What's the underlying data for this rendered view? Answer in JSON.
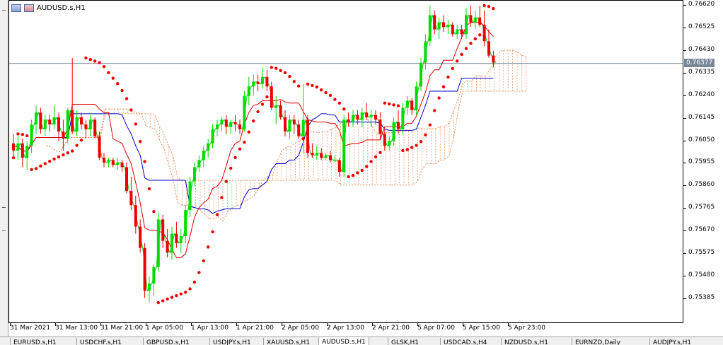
{
  "window": {
    "title": "AUDUSD.s,H1"
  },
  "colors": {
    "bull": "#00dd00",
    "bear": "#ee0000",
    "tenkan": "#dd0000",
    "kijun": "#0000cc",
    "chikou": "#22cc22",
    "cloud": "#e8905a",
    "psar": "#ee0000",
    "price_line": "#778899"
  },
  "price_axis": {
    "labels": [
      "0.76620",
      "0.76525",
      "0.76430",
      "0.76335",
      "0.76240",
      "0.76145",
      "0.76050",
      "0.75955",
      "0.75860",
      "0.75765",
      "0.75670",
      "0.75575",
      "0.75480",
      "0.75385"
    ],
    "current_price": "0.76377"
  },
  "time_axis": {
    "labels": [
      "31 Mar 2021",
      "31 Mar 13:00",
      "31 Mar 21:00",
      "1 Apr 05:00",
      "1 Apr 13:00",
      "1 Apr 21:00",
      "2 Apr 05:00",
      "2 Apr 13:00",
      "2 Apr 21:00",
      "5 Apr 07:00",
      "5 Apr 15:00",
      "5 Apr 23:00"
    ]
  },
  "tabs": [
    "EURUSD.s,H1",
    "USDCHF.s,H1",
    "GBPUSD.s,H1",
    "USDJPY.s,H1",
    "XAUUSD.s,H1",
    "AUDUSD.s,H1",
    "GLSK,H1",
    "USDCAD.s,H4",
    "NZDUSD.s,H1",
    "EURNZD,Daily",
    "AUDJPY.s,H1"
  ],
  "active_tab": "AUDUSD.s,H1",
  "chart_data": {
    "type": "candlestick",
    "title": "AUDUSD.s,H1",
    "ylim": [
      0.7534,
      0.7667
    ],
    "indicators": [
      "Ichimoku Kinko Hyo",
      "Parabolic SAR"
    ],
    "candles": [
      {
        "o": 0.7604,
        "h": 0.7608,
        "l": 0.7598,
        "c": 0.7601
      },
      {
        "o": 0.7601,
        "h": 0.7607,
        "l": 0.7597,
        "c": 0.7604
      },
      {
        "o": 0.7604,
        "h": 0.7606,
        "l": 0.7594,
        "c": 0.7598
      },
      {
        "o": 0.7598,
        "h": 0.7605,
        "l": 0.7593,
        "c": 0.7603
      },
      {
        "o": 0.7603,
        "h": 0.7614,
        "l": 0.76,
        "c": 0.7612
      },
      {
        "o": 0.7612,
        "h": 0.762,
        "l": 0.7608,
        "c": 0.7617
      },
      {
        "o": 0.7617,
        "h": 0.7619,
        "l": 0.7608,
        "c": 0.761
      },
      {
        "o": 0.761,
        "h": 0.7616,
        "l": 0.7607,
        "c": 0.7614
      },
      {
        "o": 0.7614,
        "h": 0.7616,
        "l": 0.7609,
        "c": 0.7612
      },
      {
        "o": 0.7612,
        "h": 0.762,
        "l": 0.761,
        "c": 0.7615
      },
      {
        "o": 0.7615,
        "h": 0.7617,
        "l": 0.7605,
        "c": 0.7609
      },
      {
        "o": 0.7609,
        "h": 0.7614,
        "l": 0.7601,
        "c": 0.7606
      },
      {
        "o": 0.7606,
        "h": 0.7619,
        "l": 0.7604,
        "c": 0.7618
      },
      {
        "o": 0.7618,
        "h": 0.764,
        "l": 0.7608,
        "c": 0.7609
      },
      {
        "o": 0.7609,
        "h": 0.7618,
        "l": 0.7607,
        "c": 0.7615
      },
      {
        "o": 0.7615,
        "h": 0.7617,
        "l": 0.761,
        "c": 0.7612
      },
      {
        "o": 0.7612,
        "h": 0.7614,
        "l": 0.7606,
        "c": 0.761
      },
      {
        "o": 0.761,
        "h": 0.7616,
        "l": 0.7607,
        "c": 0.7614
      },
      {
        "o": 0.7614,
        "h": 0.7615,
        "l": 0.7606,
        "c": 0.7607
      },
      {
        "o": 0.7607,
        "h": 0.7609,
        "l": 0.7597,
        "c": 0.7598
      },
      {
        "o": 0.7598,
        "h": 0.76,
        "l": 0.7594,
        "c": 0.7596
      },
      {
        "o": 0.7596,
        "h": 0.7598,
        "l": 0.7594,
        "c": 0.7597
      },
      {
        "o": 0.7597,
        "h": 0.7598,
        "l": 0.7594,
        "c": 0.7595
      },
      {
        "o": 0.7595,
        "h": 0.7598,
        "l": 0.7593,
        "c": 0.7596
      },
      {
        "o": 0.7596,
        "h": 0.7597,
        "l": 0.7592,
        "c": 0.7594
      },
      {
        "o": 0.7594,
        "h": 0.7596,
        "l": 0.7583,
        "c": 0.7584
      },
      {
        "o": 0.7584,
        "h": 0.759,
        "l": 0.7576,
        "c": 0.7578
      },
      {
        "o": 0.7578,
        "h": 0.7582,
        "l": 0.7566,
        "c": 0.7569
      },
      {
        "o": 0.7569,
        "h": 0.7572,
        "l": 0.7558,
        "c": 0.756
      },
      {
        "o": 0.756,
        "h": 0.7562,
        "l": 0.7539,
        "c": 0.7542
      },
      {
        "o": 0.7542,
        "h": 0.7548,
        "l": 0.7537,
        "c": 0.7545
      },
      {
        "o": 0.7545,
        "h": 0.7553,
        "l": 0.754,
        "c": 0.7552
      },
      {
        "o": 0.7552,
        "h": 0.7575,
        "l": 0.755,
        "c": 0.7572
      },
      {
        "o": 0.7572,
        "h": 0.7574,
        "l": 0.756,
        "c": 0.7563
      },
      {
        "o": 0.7563,
        "h": 0.7568,
        "l": 0.7556,
        "c": 0.7558
      },
      {
        "o": 0.7558,
        "h": 0.7569,
        "l": 0.7555,
        "c": 0.7566
      },
      {
        "o": 0.7566,
        "h": 0.7571,
        "l": 0.756,
        "c": 0.7562
      },
      {
        "o": 0.7562,
        "h": 0.7568,
        "l": 0.7558,
        "c": 0.7565
      },
      {
        "o": 0.7565,
        "h": 0.7578,
        "l": 0.7562,
        "c": 0.7576
      },
      {
        "o": 0.7576,
        "h": 0.759,
        "l": 0.7573,
        "c": 0.7588
      },
      {
        "o": 0.7588,
        "h": 0.7596,
        "l": 0.7586,
        "c": 0.7594
      },
      {
        "o": 0.7594,
        "h": 0.7599,
        "l": 0.7592,
        "c": 0.7597
      },
      {
        "o": 0.7597,
        "h": 0.7603,
        "l": 0.7594,
        "c": 0.7601
      },
      {
        "o": 0.7601,
        "h": 0.7606,
        "l": 0.7598,
        "c": 0.7604
      },
      {
        "o": 0.7604,
        "h": 0.7612,
        "l": 0.7602,
        "c": 0.761
      },
      {
        "o": 0.761,
        "h": 0.7614,
        "l": 0.7607,
        "c": 0.7612
      },
      {
        "o": 0.7612,
        "h": 0.7615,
        "l": 0.7609,
        "c": 0.7614
      },
      {
        "o": 0.7614,
        "h": 0.7616,
        "l": 0.7608,
        "c": 0.7611
      },
      {
        "o": 0.7611,
        "h": 0.7614,
        "l": 0.7608,
        "c": 0.7613
      },
      {
        "o": 0.7613,
        "h": 0.7616,
        "l": 0.7609,
        "c": 0.7612
      },
      {
        "o": 0.7612,
        "h": 0.7614,
        "l": 0.7608,
        "c": 0.761
      },
      {
        "o": 0.761,
        "h": 0.7626,
        "l": 0.7609,
        "c": 0.7624
      },
      {
        "o": 0.7624,
        "h": 0.7632,
        "l": 0.762,
        "c": 0.7628
      },
      {
        "o": 0.7628,
        "h": 0.7633,
        "l": 0.7624,
        "c": 0.763
      },
      {
        "o": 0.763,
        "h": 0.7633,
        "l": 0.7626,
        "c": 0.7629
      },
      {
        "o": 0.7629,
        "h": 0.7636,
        "l": 0.7627,
        "c": 0.7632
      },
      {
        "o": 0.7632,
        "h": 0.7635,
        "l": 0.7626,
        "c": 0.7628
      },
      {
        "o": 0.7628,
        "h": 0.763,
        "l": 0.7618,
        "c": 0.7619
      },
      {
        "o": 0.7619,
        "h": 0.7624,
        "l": 0.7612,
        "c": 0.762
      },
      {
        "o": 0.762,
        "h": 0.7622,
        "l": 0.7614,
        "c": 0.7615
      },
      {
        "o": 0.7615,
        "h": 0.7618,
        "l": 0.7607,
        "c": 0.7609
      },
      {
        "o": 0.7609,
        "h": 0.7616,
        "l": 0.7606,
        "c": 0.7614
      },
      {
        "o": 0.7614,
        "h": 0.7616,
        "l": 0.7608,
        "c": 0.7612
      },
      {
        "o": 0.7612,
        "h": 0.7614,
        "l": 0.7606,
        "c": 0.7607
      },
      {
        "o": 0.7607,
        "h": 0.7629,
        "l": 0.76,
        "c": 0.7614
      },
      {
        "o": 0.7614,
        "h": 0.7616,
        "l": 0.7598,
        "c": 0.76
      },
      {
        "o": 0.76,
        "h": 0.7604,
        "l": 0.7598,
        "c": 0.7599
      },
      {
        "o": 0.7599,
        "h": 0.7603,
        "l": 0.7597,
        "c": 0.76
      },
      {
        "o": 0.76,
        "h": 0.7602,
        "l": 0.7597,
        "c": 0.7598
      },
      {
        "o": 0.7598,
        "h": 0.76,
        "l": 0.7597,
        "c": 0.7599
      },
      {
        "o": 0.7599,
        "h": 0.7601,
        "l": 0.7596,
        "c": 0.7597
      },
      {
        "o": 0.7597,
        "h": 0.7599,
        "l": 0.7596,
        "c": 0.7597
      },
      {
        "o": 0.7597,
        "h": 0.7598,
        "l": 0.759,
        "c": 0.7592
      },
      {
        "o": 0.7592,
        "h": 0.7616,
        "l": 0.759,
        "c": 0.7614
      },
      {
        "o": 0.7614,
        "h": 0.7617,
        "l": 0.7611,
        "c": 0.7613
      },
      {
        "o": 0.7613,
        "h": 0.7618,
        "l": 0.7611,
        "c": 0.7616
      },
      {
        "o": 0.7616,
        "h": 0.7618,
        "l": 0.7612,
        "c": 0.7614
      },
      {
        "o": 0.7614,
        "h": 0.7619,
        "l": 0.7611,
        "c": 0.7617
      },
      {
        "o": 0.7617,
        "h": 0.7621,
        "l": 0.7614,
        "c": 0.7615
      },
      {
        "o": 0.7615,
        "h": 0.7618,
        "l": 0.7611,
        "c": 0.7616
      },
      {
        "o": 0.7616,
        "h": 0.7618,
        "l": 0.7612,
        "c": 0.7614
      },
      {
        "o": 0.7614,
        "h": 0.7617,
        "l": 0.7606,
        "c": 0.7608
      },
      {
        "o": 0.7608,
        "h": 0.761,
        "l": 0.7601,
        "c": 0.7603
      },
      {
        "o": 0.7603,
        "h": 0.7607,
        "l": 0.7601,
        "c": 0.7605
      },
      {
        "o": 0.7605,
        "h": 0.7615,
        "l": 0.7603,
        "c": 0.7613
      },
      {
        "o": 0.7613,
        "h": 0.7618,
        "l": 0.7608,
        "c": 0.761
      },
      {
        "o": 0.761,
        "h": 0.7621,
        "l": 0.7608,
        "c": 0.7619
      },
      {
        "o": 0.7619,
        "h": 0.7624,
        "l": 0.7616,
        "c": 0.7622
      },
      {
        "o": 0.7622,
        "h": 0.7623,
        "l": 0.7616,
        "c": 0.7618
      },
      {
        "o": 0.7618,
        "h": 0.763,
        "l": 0.7616,
        "c": 0.7628
      },
      {
        "o": 0.7628,
        "h": 0.764,
        "l": 0.7626,
        "c": 0.7638
      },
      {
        "o": 0.7638,
        "h": 0.765,
        "l": 0.7635,
        "c": 0.7647
      },
      {
        "o": 0.7647,
        "h": 0.7662,
        "l": 0.7645,
        "c": 0.7658
      },
      {
        "o": 0.7658,
        "h": 0.766,
        "l": 0.765,
        "c": 0.7652
      },
      {
        "o": 0.7652,
        "h": 0.7657,
        "l": 0.7648,
        "c": 0.7655
      },
      {
        "o": 0.7655,
        "h": 0.7658,
        "l": 0.7651,
        "c": 0.7653
      },
      {
        "o": 0.7653,
        "h": 0.7656,
        "l": 0.765,
        "c": 0.7654
      },
      {
        "o": 0.7654,
        "h": 0.7655,
        "l": 0.7649,
        "c": 0.765
      },
      {
        "o": 0.765,
        "h": 0.7654,
        "l": 0.7648,
        "c": 0.7652
      },
      {
        "o": 0.7652,
        "h": 0.7654,
        "l": 0.7648,
        "c": 0.765
      },
      {
        "o": 0.765,
        "h": 0.7661,
        "l": 0.7648,
        "c": 0.7658
      },
      {
        "o": 0.7658,
        "h": 0.7662,
        "l": 0.7653,
        "c": 0.7655
      },
      {
        "o": 0.7655,
        "h": 0.766,
        "l": 0.7652,
        "c": 0.7657
      },
      {
        "o": 0.7657,
        "h": 0.7662,
        "l": 0.7653,
        "c": 0.7654
      },
      {
        "o": 0.7654,
        "h": 0.766,
        "l": 0.7645,
        "c": 0.7647
      },
      {
        "o": 0.7647,
        "h": 0.7652,
        "l": 0.764,
        "c": 0.7641
      },
      {
        "o": 0.7641,
        "h": 0.7643,
        "l": 0.7636,
        "c": 0.7638
      }
    ]
  }
}
